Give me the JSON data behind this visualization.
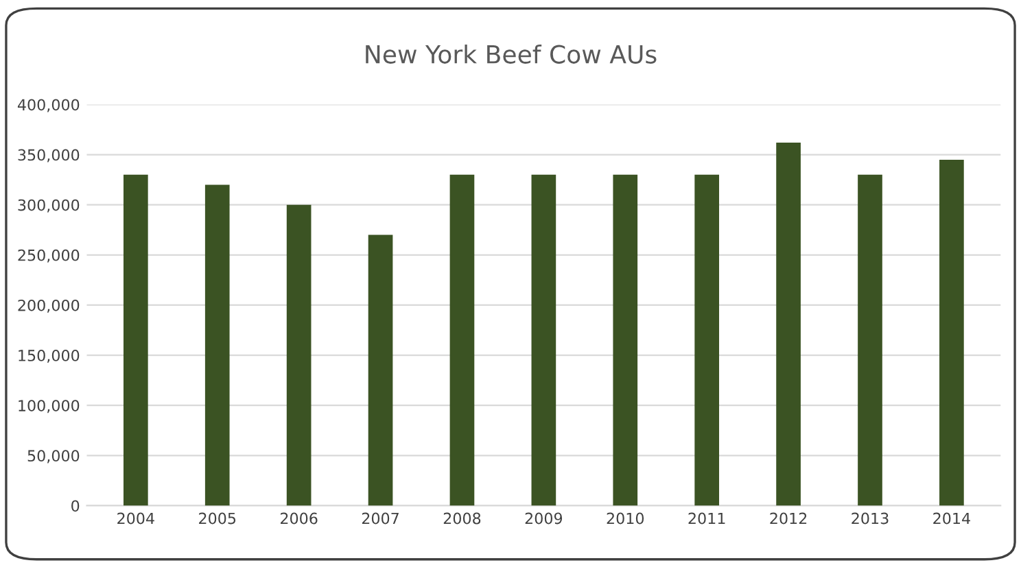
{
  "chart_data": {
    "type": "bar",
    "title": "New York Beef Cow AUs",
    "categories": [
      "2004",
      "2005",
      "2006",
      "2007",
      "2008",
      "2009",
      "2010",
      "2011",
      "2012",
      "2013",
      "2014"
    ],
    "values": [
      330000,
      320000,
      300000,
      270000,
      330000,
      330000,
      330000,
      330000,
      362000,
      330000,
      345000
    ],
    "color": "#3b5323",
    "ylim": [
      0,
      400000
    ],
    "yticks": [
      {
        "value": 0,
        "label": "0"
      },
      {
        "value": 50000,
        "label": "50,000"
      },
      {
        "value": 100000,
        "label": "100,000"
      },
      {
        "value": 150000,
        "label": "150,000"
      },
      {
        "value": 200000,
        "label": "200,000"
      },
      {
        "value": 250000,
        "label": "250,000"
      },
      {
        "value": 300000,
        "label": "300,000"
      },
      {
        "value": 350000,
        "label": "350,000"
      },
      {
        "value": 400000,
        "label": "400,000"
      }
    ],
    "grid": "y"
  }
}
